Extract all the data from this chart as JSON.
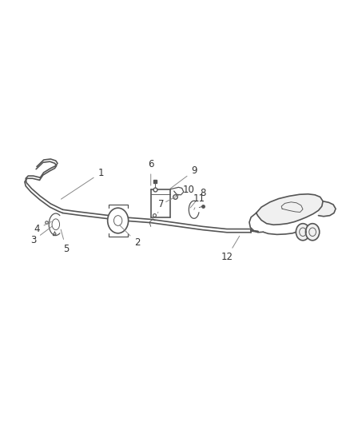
{
  "background_color": "#ffffff",
  "line_color": "#555555",
  "label_color": "#333333",
  "fig_width": 4.38,
  "fig_height": 5.33,
  "dpi": 100,
  "leaders": {
    "1": {
      "lpos": [
        0.285,
        0.595
      ],
      "tpos": [
        0.165,
        0.53
      ]
    },
    "2": {
      "lpos": [
        0.39,
        0.43
      ],
      "tpos": [
        0.335,
        0.475
      ]
    },
    "3": {
      "lpos": [
        0.09,
        0.435
      ],
      "tpos": [
        0.15,
        0.472
      ]
    },
    "4": {
      "lpos": [
        0.1,
        0.462
      ],
      "tpos": [
        0.148,
        0.482
      ]
    },
    "5": {
      "lpos": [
        0.185,
        0.415
      ],
      "tpos": [
        0.168,
        0.466
      ]
    },
    "6": {
      "lpos": [
        0.43,
        0.615
      ],
      "tpos": [
        0.43,
        0.56
      ]
    },
    "7": {
      "lpos": [
        0.46,
        0.52
      ],
      "tpos": [
        0.45,
        0.5
      ]
    },
    "8": {
      "lpos": [
        0.58,
        0.548
      ],
      "tpos": [
        0.54,
        0.508
      ]
    },
    "9": {
      "lpos": [
        0.555,
        0.6
      ],
      "tpos": [
        0.48,
        0.554
      ]
    },
    "10": {
      "lpos": [
        0.54,
        0.555
      ],
      "tpos": [
        0.468,
        0.524
      ]
    },
    "11": {
      "lpos": [
        0.57,
        0.535
      ],
      "tpos": [
        0.555,
        0.508
      ]
    },
    "12": {
      "lpos": [
        0.65,
        0.395
      ],
      "tpos": [
        0.69,
        0.45
      ]
    }
  }
}
